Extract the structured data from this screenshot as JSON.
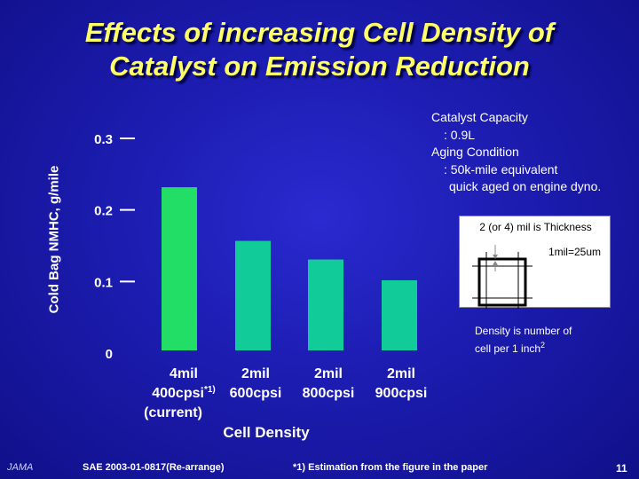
{
  "title_line1": "Effects of increasing Cell Density of",
  "title_line2": "Catalyst on Emission Reduction",
  "chart_data": {
    "type": "bar",
    "ylabel": "Cold Bag NMHC, g/mile",
    "xlabel": "Cell Density",
    "ylim": [
      0,
      0.3
    ],
    "yticks": [
      "0",
      "0.1",
      "0.2",
      "0.3"
    ],
    "categories": [
      {
        "line1": "4mil",
        "line2": "400cpsi",
        "sup": "*1)",
        "line3": "(current)"
      },
      {
        "line1": "2mil",
        "line2": "600cpsi",
        "sup": "",
        "line3": ""
      },
      {
        "line1": "2mil",
        "line2": "800cpsi",
        "sup": "",
        "line3": ""
      },
      {
        "line1": "2mil",
        "line2": "900cpsi",
        "sup": "",
        "line3": ""
      }
    ],
    "values": [
      0.228,
      0.153,
      0.127,
      0.098
    ],
    "colors": [
      "#22dd66",
      "#11cc99",
      "#11cc99",
      "#11cc99"
    ]
  },
  "notes": {
    "capacity_l1": "Catalyst Capacity",
    "capacity_l2": ": 0.9L",
    "aging_l1": "Aging Condition",
    "aging_l2": ": 50k-mile equivalent",
    "aging_l3": "quick aged on engine dyno.",
    "thickness_l1": "2 (or 4) mil is Thickness",
    "thickness_l2": "1mil=25um",
    "density_l1": "Density is number of",
    "density_l2": "cell per 1 inch",
    "density_sup": "2"
  },
  "footer": {
    "logo": "JAMA",
    "source": "SAE 2003-01-0817(Re-arrange)",
    "estimation": "*1) Estimation from the figure in the paper",
    "page": "11"
  }
}
